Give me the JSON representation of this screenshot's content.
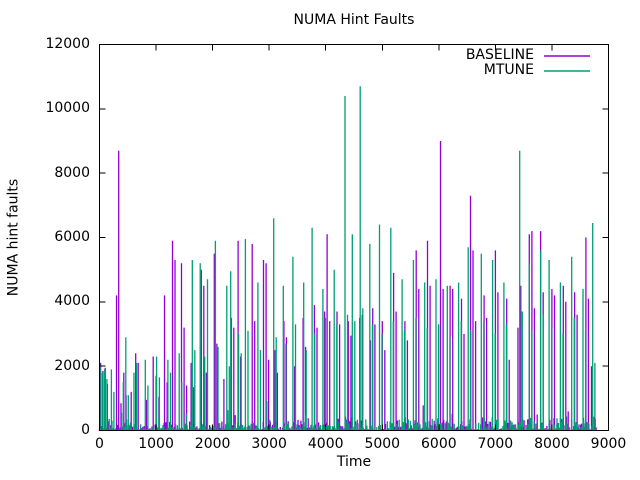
{
  "chart_data": {
    "type": "line",
    "style": "impulse-like spiky time series (gnuplot 'with lines')",
    "title": "NUMA Hint Faults",
    "xlabel": "Time",
    "ylabel": "NUMA hint faults",
    "xlim": [
      0,
      9000
    ],
    "ylim": [
      0,
      12000
    ],
    "xticks": [
      0,
      1000,
      2000,
      3000,
      4000,
      5000,
      6000,
      7000,
      8000,
      9000
    ],
    "yticks": [
      0,
      2000,
      4000,
      6000,
      8000,
      10000,
      12000
    ],
    "grid": false,
    "legend_position": "inside top right",
    "background_color": "#ffffff",
    "axis_color": "#000000",
    "series": [
      {
        "name": "BASELINE",
        "color": "#9400d3",
        "noise_seed": 101,
        "points": [
          [
            20,
            2100
          ],
          [
            60,
            1850
          ],
          [
            100,
            1950
          ],
          [
            140,
            1450
          ],
          [
            300,
            4200
          ],
          [
            340,
            8700
          ],
          [
            380,
            850
          ],
          [
            430,
            1800
          ],
          [
            470,
            1100
          ],
          [
            560,
            1200
          ],
          [
            640,
            2400
          ],
          [
            685,
            2100
          ],
          [
            830,
            950
          ],
          [
            950,
            2300
          ],
          [
            1000,
            1700
          ],
          [
            1050,
            1050
          ],
          [
            1150,
            4200
          ],
          [
            1195,
            1500
          ],
          [
            1290,
            5900
          ],
          [
            1335,
            5300
          ],
          [
            1450,
            5200
          ],
          [
            1495,
            3200
          ],
          [
            1540,
            1400
          ],
          [
            1620,
            2100
          ],
          [
            1665,
            1350
          ],
          [
            1800,
            5000
          ],
          [
            1845,
            4500
          ],
          [
            1890,
            1800
          ],
          [
            2030,
            5500
          ],
          [
            2075,
            2700
          ],
          [
            2200,
            1600
          ],
          [
            2330,
            3500
          ],
          [
            2375,
            3200
          ],
          [
            2450,
            5900
          ],
          [
            2495,
            2300
          ],
          [
            2700,
            5800
          ],
          [
            2745,
            3400
          ],
          [
            2900,
            5300
          ],
          [
            2945,
            5200
          ],
          [
            2990,
            2200
          ],
          [
            3100,
            2500
          ],
          [
            3145,
            1800
          ],
          [
            3260,
            3400
          ],
          [
            3305,
            2900
          ],
          [
            3450,
            2000
          ],
          [
            3600,
            3500
          ],
          [
            3645,
            2600
          ],
          [
            3800,
            3900
          ],
          [
            3845,
            3200
          ],
          [
            3980,
            3700
          ],
          [
            4025,
            6100
          ],
          [
            4070,
            3400
          ],
          [
            4200,
            3700
          ],
          [
            4245,
            3300
          ],
          [
            4400,
            3400
          ],
          [
            4445,
            2950
          ],
          [
            4600,
            3500
          ],
          [
            4645,
            3600
          ],
          [
            4790,
            2800
          ],
          [
            4830,
            3800
          ],
          [
            4870,
            3300
          ],
          [
            5000,
            3400
          ],
          [
            5045,
            2500
          ],
          [
            5200,
            4900
          ],
          [
            5245,
            3700
          ],
          [
            5400,
            3400
          ],
          [
            5445,
            2800
          ],
          [
            5600,
            5600
          ],
          [
            5645,
            4400
          ],
          [
            5800,
            5900
          ],
          [
            5845,
            4500
          ],
          [
            6030,
            9000
          ],
          [
            6075,
            4400
          ],
          [
            6200,
            4500
          ],
          [
            6245,
            4400
          ],
          [
            6400,
            4100
          ],
          [
            6445,
            3000
          ],
          [
            6560,
            7300
          ],
          [
            6605,
            5600
          ],
          [
            6650,
            3400
          ],
          [
            6800,
            4200
          ],
          [
            6845,
            3500
          ],
          [
            7000,
            5600
          ],
          [
            7045,
            4300
          ],
          [
            7200,
            4100
          ],
          [
            7245,
            2200
          ],
          [
            7400,
            3200
          ],
          [
            7450,
            4500
          ],
          [
            7600,
            6100
          ],
          [
            7645,
            6200
          ],
          [
            7690,
            3800
          ],
          [
            7800,
            6200
          ],
          [
            7845,
            4300
          ],
          [
            8000,
            4400
          ],
          [
            8045,
            4200
          ],
          [
            8200,
            4500
          ],
          [
            8245,
            4000
          ],
          [
            8400,
            4300
          ],
          [
            8445,
            3600
          ],
          [
            8600,
            6000
          ],
          [
            8645,
            4100
          ],
          [
            8700,
            2000
          ]
        ]
      },
      {
        "name": "MTUNE",
        "color": "#009e73",
        "noise_seed": 202,
        "points": [
          [
            10,
            2050
          ],
          [
            50,
            1800
          ],
          [
            90,
            1900
          ],
          [
            130,
            1600
          ],
          [
            210,
            1900
          ],
          [
            255,
            1200
          ],
          [
            420,
            1500
          ],
          [
            465,
            2900
          ],
          [
            510,
            1100
          ],
          [
            610,
            1800
          ],
          [
            655,
            2100
          ],
          [
            810,
            2200
          ],
          [
            855,
            1400
          ],
          [
            1010,
            2300
          ],
          [
            1060,
            1650
          ],
          [
            1210,
            2200
          ],
          [
            1255,
            1800
          ],
          [
            1410,
            2400
          ],
          [
            1455,
            1500
          ],
          [
            1640,
            5300
          ],
          [
            1685,
            2500
          ],
          [
            1780,
            5200
          ],
          [
            1860,
            2300
          ],
          [
            1910,
            4700
          ],
          [
            2050,
            5900
          ],
          [
            2095,
            2600
          ],
          [
            2250,
            4500
          ],
          [
            2295,
            2000
          ],
          [
            2320,
            4950
          ],
          [
            2460,
            3000
          ],
          [
            2505,
            2400
          ],
          [
            2580,
            5950
          ],
          [
            2625,
            3100
          ],
          [
            2800,
            4600
          ],
          [
            2845,
            2500
          ],
          [
            3080,
            6600
          ],
          [
            3125,
            2900
          ],
          [
            3250,
            4500
          ],
          [
            3295,
            2700
          ],
          [
            3420,
            5400
          ],
          [
            3465,
            3300
          ],
          [
            3610,
            4600
          ],
          [
            3655,
            2500
          ],
          [
            3760,
            6300
          ],
          [
            3805,
            3000
          ],
          [
            3950,
            4400
          ],
          [
            3995,
            3500
          ],
          [
            4150,
            5000
          ],
          [
            4195,
            3300
          ],
          [
            4340,
            10400
          ],
          [
            4385,
            3600
          ],
          [
            4470,
            6100
          ],
          [
            4515,
            3400
          ],
          [
            4610,
            10700
          ],
          [
            4655,
            3800
          ],
          [
            4780,
            5800
          ],
          [
            4825,
            3300
          ],
          [
            4950,
            6400
          ],
          [
            4995,
            3000
          ],
          [
            5150,
            6300
          ],
          [
            5195,
            3400
          ],
          [
            5350,
            4700
          ],
          [
            5395,
            3100
          ],
          [
            5550,
            5300
          ],
          [
            5595,
            3500
          ],
          [
            5750,
            4600
          ],
          [
            5795,
            3200
          ],
          [
            5950,
            4700
          ],
          [
            5995,
            3300
          ],
          [
            6150,
            4500
          ],
          [
            6195,
            2900
          ],
          [
            6350,
            4600
          ],
          [
            6395,
            3400
          ],
          [
            6520,
            5700
          ],
          [
            6565,
            3100
          ],
          [
            6750,
            5500
          ],
          [
            6795,
            3400
          ],
          [
            6950,
            5300
          ],
          [
            6995,
            3000
          ],
          [
            7150,
            4600
          ],
          [
            7195,
            3300
          ],
          [
            7430,
            8700
          ],
          [
            7475,
            3700
          ],
          [
            7600,
            5200
          ],
          [
            7645,
            3100
          ],
          [
            7800,
            5600
          ],
          [
            7845,
            3600
          ],
          [
            7950,
            5300
          ],
          [
            7995,
            3200
          ],
          [
            8150,
            4600
          ],
          [
            8195,
            3000
          ],
          [
            8350,
            5400
          ],
          [
            8395,
            3500
          ],
          [
            8550,
            4400
          ],
          [
            8595,
            3100
          ],
          [
            8720,
            6450
          ],
          [
            8760,
            2100
          ]
        ]
      }
    ],
    "noise_floor": {
      "description": "continuous sub-500 jitter band along the x-axis for both series",
      "step": 26,
      "max_start": 330,
      "max_end": 540,
      "x_end": 8790,
      "spike_chance": 0.06
    }
  }
}
